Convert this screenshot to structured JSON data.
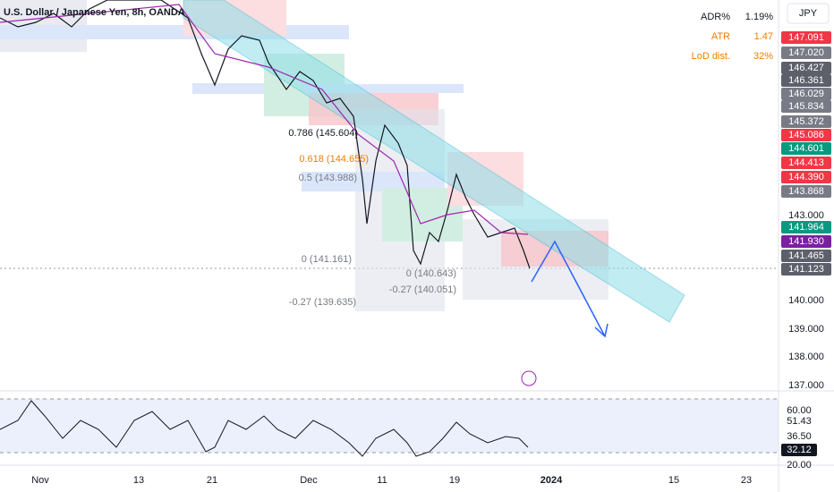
{
  "header": {
    "symbol": "U.S. Dollar / Japanese Yen, 8h, OANDA",
    "currency": "JPY"
  },
  "stats": [
    {
      "label": "ADR%",
      "value": "1.19%"
    },
    {
      "label": "ATR",
      "value": "1.47"
    },
    {
      "label": "LoD dist.",
      "value": "32%"
    }
  ],
  "price_tags": [
    {
      "text": "147.091",
      "color": "#f23645"
    },
    {
      "text": "147.020",
      "color": "#787b86"
    },
    {
      "text": "146.427",
      "color": "#5d606b"
    },
    {
      "text": "146.361",
      "color": "#5d606b"
    },
    {
      "text": "146.029",
      "color": "#787b86"
    },
    {
      "text": "145.834",
      "color": "#787b86"
    },
    {
      "text": "145.372",
      "color": "#787b86"
    },
    {
      "text": "145.086",
      "color": "#f23645"
    },
    {
      "text": "144.601",
      "color": "#089981"
    },
    {
      "text": "144.413",
      "color": "#f23645"
    },
    {
      "text": "144.390",
      "color": "#f23645"
    },
    {
      "text": "143.868",
      "color": "#787b86"
    },
    {
      "text": "141.964",
      "color": "#089981"
    },
    {
      "text": "141.930",
      "color": "#7b1fa2"
    },
    {
      "text": "141.465",
      "color": "#5d606b"
    },
    {
      "text": "141.123",
      "color": "#5d606b"
    }
  ],
  "price_axis": [
    "143.000",
    "140.000",
    "139.000",
    "138.000",
    "137.000"
  ],
  "fib_labels": [
    "0.786 (145.604)",
    "0.618 (144.655)",
    "0.5 (143.988)",
    "0 (141.161)",
    "-0.27 (139.635)",
    "0 (140.643)",
    "-0.27 (140.051)"
  ],
  "rsi_axis": [
    "60.00",
    "51.43",
    "36.50",
    "32.12",
    "20.00"
  ],
  "time_axis": [
    "Nov",
    "13",
    "21",
    "Dec",
    "11",
    "19",
    "2024",
    "15",
    "23"
  ]
}
